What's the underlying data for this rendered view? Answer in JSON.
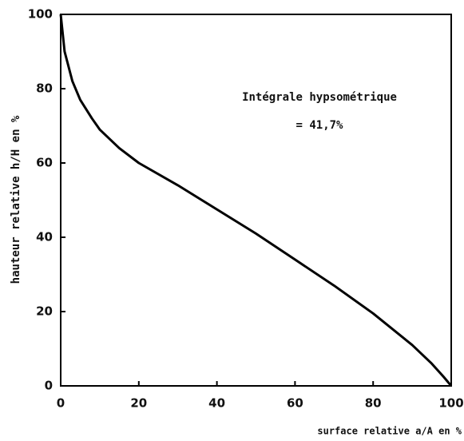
{
  "chart_data": {
    "type": "line",
    "xlabel": "surface relative a/A en %",
    "ylabel": "hauteur relative h/H en %",
    "annotations": [
      "Intégrale hypsométrique",
      "= 41,7%"
    ],
    "x": [
      0,
      1,
      3,
      5,
      8,
      10,
      15,
      20,
      30,
      40,
      50,
      60,
      70,
      80,
      90,
      95,
      98,
      100
    ],
    "values": [
      100,
      90,
      82,
      77,
      72,
      69,
      64,
      60,
      54,
      47.5,
      41,
      34,
      27,
      19.5,
      11,
      6,
      2.5,
      0
    ],
    "color": "#000000",
    "xlim": [
      0,
      100
    ],
    "xticks": [
      0,
      20,
      40,
      60,
      80,
      100
    ],
    "ylim": [
      0,
      100
    ],
    "yticks": [
      0,
      20,
      40,
      60,
      80,
      100
    ]
  }
}
